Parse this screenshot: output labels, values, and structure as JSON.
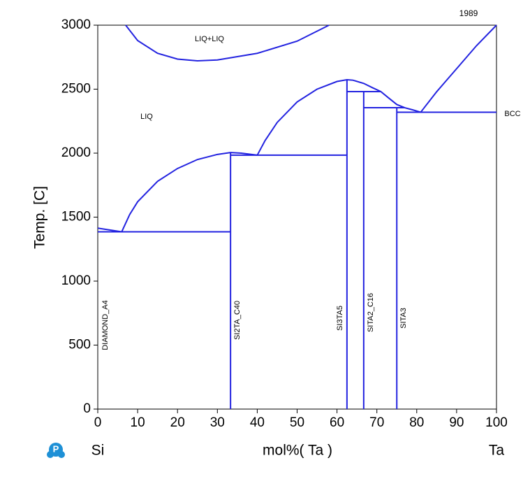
{
  "chart_data": {
    "type": "line",
    "title": "1989",
    "x_label": "mol%(  Ta  )",
    "y_label": "Temp.  [C]",
    "x_start_label": "Si",
    "x_end_label": "Ta",
    "annotations": [
      "LIQ+LIQ",
      "LIQ",
      "BCC",
      "DIAMOND_A4",
      "SI2TA_C40",
      "SI3TA5",
      "SITA2_C16",
      "SITA3"
    ],
    "xlim": [
      0,
      100
    ],
    "xticks": [
      0,
      10,
      20,
      30,
      40,
      50,
      60,
      70,
      80,
      90,
      100
    ],
    "ylim": [
      0,
      3000
    ],
    "yticks": [
      0,
      500,
      1000,
      1500,
      2000,
      2500,
      3000
    ],
    "color": "#2323e0",
    "series": [
      {
        "x": [
          7,
          10,
          15,
          20,
          25,
          30,
          40,
          50,
          58
        ],
        "values": [
          3000,
          2880,
          2780,
          2735,
          2721,
          2728,
          2780,
          2875,
          3000
        ]
      },
      {
        "x": [
          0,
          6
        ],
        "values": [
          1414,
          1385
        ]
      },
      {
        "x": [
          6,
          8,
          10,
          15,
          20,
          25,
          30,
          33.3,
          36,
          40
        ],
        "values": [
          1385,
          1520,
          1620,
          1780,
          1880,
          1950,
          1990,
          2005,
          2000,
          1984
        ]
      },
      {
        "x": [
          0,
          33.3
        ],
        "values": [
          1385,
          1385
        ]
      },
      {
        "x": [
          33.3,
          62.5
        ],
        "values": [
          1984,
          1984
        ]
      },
      {
        "x": [
          40,
          42,
          45,
          50,
          55,
          60,
          62.5,
          64,
          66.7,
          69,
          71,
          73,
          75,
          77,
          79,
          81
        ],
        "values": [
          1984,
          2100,
          2240,
          2400,
          2500,
          2560,
          2574,
          2570,
          2545,
          2510,
          2481,
          2430,
          2380,
          2355,
          2338,
          2320
        ]
      },
      {
        "x": [
          62.5,
          71
        ],
        "values": [
          2481,
          2481
        ]
      },
      {
        "x": [
          66.7,
          77
        ],
        "values": [
          2355,
          2355
        ]
      },
      {
        "x": [
          75,
          100
        ],
        "values": [
          2320,
          2320
        ]
      },
      {
        "x": [
          81,
          85,
          90,
          95,
          100
        ],
        "values": [
          2320,
          2480,
          2660,
          2840,
          3000
        ]
      },
      {
        "x": [
          33.3,
          33.3
        ],
        "values": [
          0,
          2005
        ]
      },
      {
        "x": [
          62.5,
          62.5
        ],
        "values": [
          0,
          2574
        ]
      },
      {
        "x": [
          66.7,
          66.7
        ],
        "values": [
          0,
          2481
        ]
      },
      {
        "x": [
          75,
          75
        ],
        "values": [
          0,
          2355
        ]
      }
    ]
  }
}
